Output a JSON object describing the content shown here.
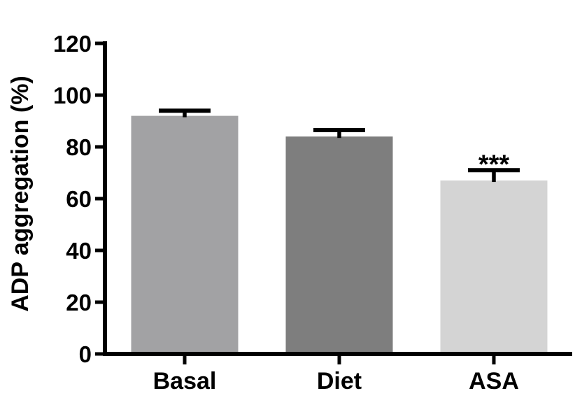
{
  "chart_data": {
    "type": "bar",
    "title": "",
    "ylabel": "ADP aggregation (%)",
    "xlabel": "",
    "categories": [
      "Basal",
      "Diet",
      "ASA"
    ],
    "values": [
      92,
      84,
      67
    ],
    "errors_plus": [
      2,
      2.5,
      4
    ],
    "error_bar_style": "upper-only",
    "bar_colors": [
      "#a2a2a4",
      "#7e7e7e",
      "#d4d4d4"
    ],
    "axis_color": "#000000",
    "background_color": "#ffffff",
    "ylim": [
      0,
      120
    ],
    "yticks": [
      0,
      20,
      40,
      60,
      80,
      100,
      120
    ],
    "grid": false,
    "legend_position": "none",
    "annotations": [
      {
        "category": "ASA",
        "text": "***"
      }
    ]
  }
}
